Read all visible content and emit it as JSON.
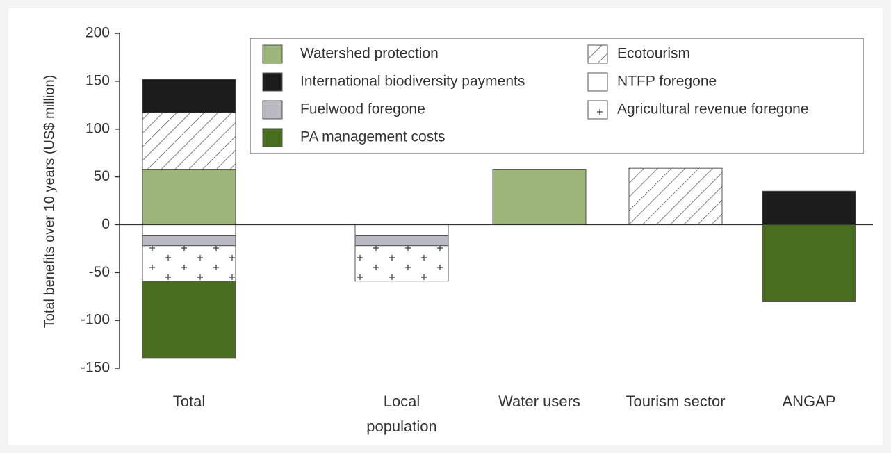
{
  "chart_data": {
    "type": "stacked_bar",
    "y_label": "Total benefits over 10 years (US$ million)",
    "categories": [
      "Total",
      "Local population",
      "Water users",
      "Tourism sector",
      "ANGAP"
    ],
    "series": [
      {
        "name": "Watershed protection",
        "color": "#9db47a",
        "values": [
          58,
          null,
          58,
          null,
          null
        ]
      },
      {
        "name": "Ecotourism",
        "color": "#ffffff",
        "pattern": "hatch",
        "values": [
          59,
          null,
          null,
          59,
          null
        ]
      },
      {
        "name": "International biodiversity payments",
        "color": "#1b1b1b",
        "values": [
          35,
          null,
          null,
          null,
          35
        ]
      },
      {
        "name": "NTFP foregone",
        "color": "#ffffff",
        "values": [
          -11,
          -11,
          null,
          null,
          null
        ]
      },
      {
        "name": "Fuelwood foregone",
        "color": "#b9b9c1",
        "values": [
          -11,
          -11,
          null,
          null,
          null
        ]
      },
      {
        "name": "Agricultural revenue foregone",
        "color": "#ffffff",
        "pattern": "plus",
        "values": [
          -37,
          -37,
          null,
          null,
          null
        ]
      },
      {
        "name": "PA management costs",
        "color": "#4a6e1f",
        "values": [
          -80,
          null,
          null,
          null,
          -80
        ]
      }
    ],
    "ylim": [
      -150,
      200
    ],
    "yticks": [
      -150,
      -100,
      -50,
      0,
      50,
      100,
      150,
      200
    ]
  }
}
